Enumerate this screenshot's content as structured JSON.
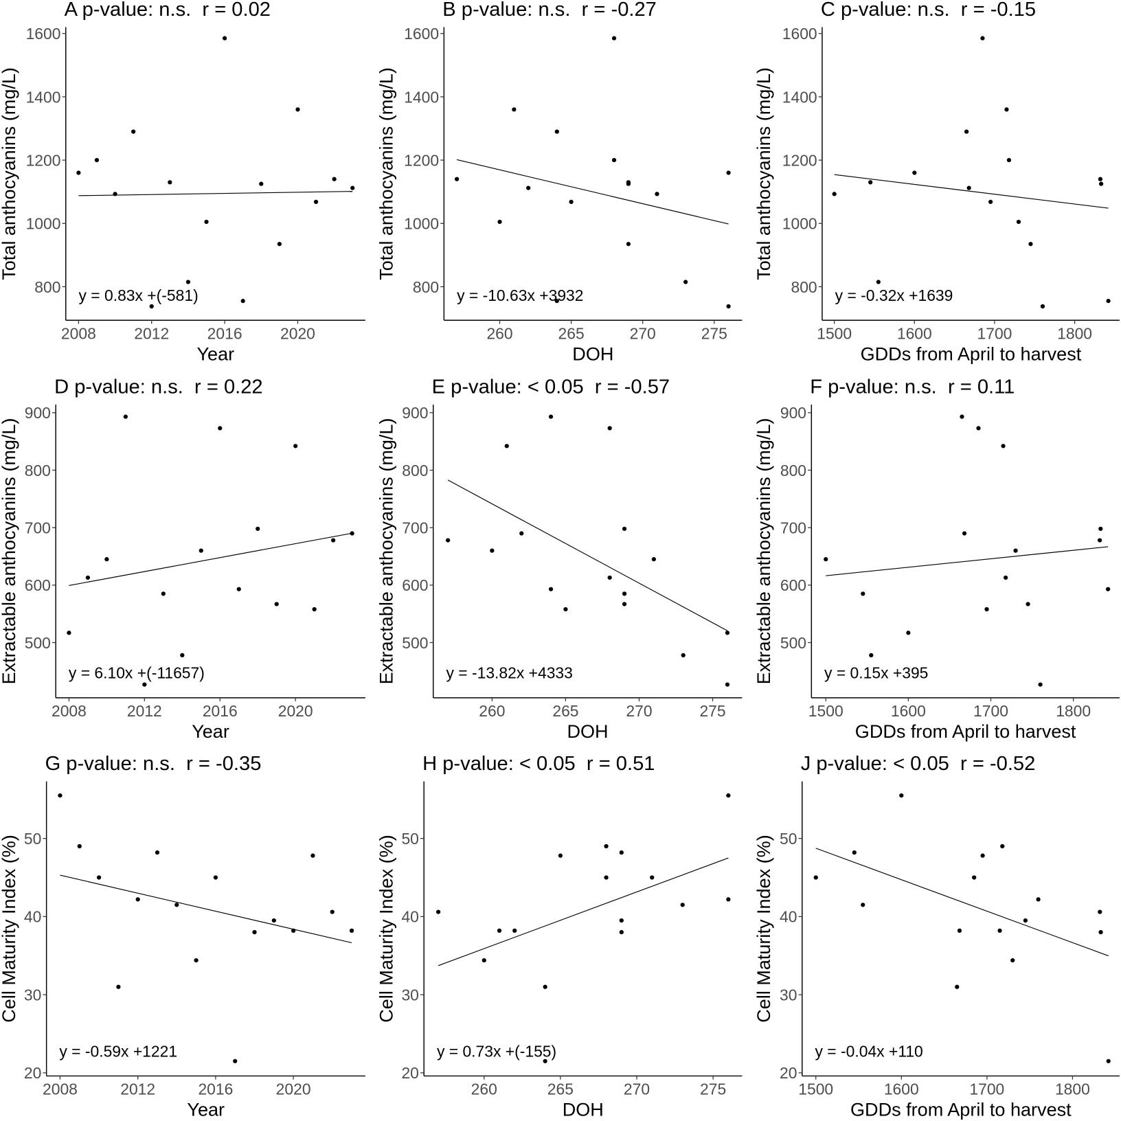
{
  "chart_data": [
    {
      "type": "scatter",
      "panel": "A",
      "title": "A p-value: n.s.  r = 0.02",
      "xlabel": "Year",
      "ylabel": "Total anthocyanins (mg/L)",
      "equation": "y = 0.83x +(-581)",
      "xlim": [
        2007.3,
        2023.7
      ],
      "ylim": [
        694,
        1620
      ],
      "xticks": [
        2008,
        2012,
        2016,
        2020
      ],
      "yticks": [
        800,
        1000,
        1200,
        1400,
        1600
      ],
      "fit_line": true,
      "grid": false,
      "x": [
        2008,
        2009,
        2010,
        2011,
        2012,
        2013,
        2014,
        2015,
        2016,
        2017,
        2018,
        2019,
        2020,
        2021,
        2022,
        2023
      ],
      "y": [
        1160,
        1200,
        1093,
        1290,
        738,
        1130,
        815,
        1005,
        1585,
        755,
        1125,
        935,
        1360,
        1068,
        1140,
        1112
      ]
    },
    {
      "type": "scatter",
      "panel": "B",
      "title": "B p-value: n.s.  r = -0.27",
      "xlabel": "DOH",
      "ylabel": "Total anthocyanins (mg/L)",
      "equation": "y = -10.63x +3932",
      "xlim": [
        256.1,
        276.95
      ],
      "ylim": [
        694,
        1620
      ],
      "xticks": [
        260,
        265,
        270,
        275
      ],
      "yticks": [
        800,
        1000,
        1200,
        1400,
        1600
      ],
      "fit_line": true,
      "grid": false,
      "x": [
        276,
        268,
        271,
        264,
        276,
        269,
        273,
        260,
        268,
        264,
        269,
        269,
        261,
        265,
        257,
        262
      ],
      "y": [
        1160,
        1200,
        1093,
        1290,
        738,
        1130,
        815,
        1005,
        1585,
        755,
        1125,
        935,
        1360,
        1068,
        1140,
        1112
      ]
    },
    {
      "type": "scatter",
      "panel": "C",
      "title": "C p-value: n.s.  r = -0.15",
      "xlabel": "GDDs from April to harvest",
      "ylabel": "Total anthocyanins (mg/L)",
      "equation": "y = -0.32x +1639",
      "xlim": [
        1484.8,
        1856
      ],
      "ylim": [
        694,
        1620
      ],
      "xticks": [
        1500,
        1600,
        1700,
        1800
      ],
      "yticks": [
        800,
        1000,
        1200,
        1400,
        1600
      ],
      "fit_line": true,
      "grid": false,
      "x": [
        1600,
        1718,
        1500,
        1665,
        1760,
        1545,
        1555,
        1730,
        1685,
        1842,
        1833,
        1745,
        1715,
        1695,
        1832,
        1668
      ],
      "y": [
        1160,
        1200,
        1093,
        1290,
        738,
        1130,
        815,
        1005,
        1585,
        755,
        1125,
        935,
        1360,
        1068,
        1140,
        1112
      ]
    },
    {
      "type": "scatter",
      "panel": "D",
      "title": "D p-value: n.s.  r = 0.22",
      "xlabel": "Year",
      "ylabel": "Extractable anthocyanins (mg/L)",
      "equation": "y = 6.10x +(-11657)",
      "xlim": [
        2007.3,
        2023.7
      ],
      "ylim": [
        404,
        914
      ],
      "xticks": [
        2008,
        2012,
        2016,
        2020
      ],
      "yticks": [
        500,
        600,
        700,
        800,
        900
      ],
      "fit_line": true,
      "grid": false,
      "x": [
        2008,
        2009,
        2010,
        2011,
        2012,
        2013,
        2014,
        2015,
        2016,
        2017,
        2018,
        2019,
        2020,
        2021,
        2022,
        2023
      ],
      "y": [
        517,
        613,
        645,
        893,
        427,
        585,
        478,
        660,
        873,
        593,
        698,
        567,
        842,
        558,
        678,
        690
      ]
    },
    {
      "type": "scatter",
      "panel": "E",
      "title": "E p-value: < 0.05  r = -0.57",
      "xlabel": "DOH",
      "ylabel": "Extractable anthocyanins (mg/L)",
      "equation": "y = -13.82x +4333",
      "xlim": [
        256,
        277
      ],
      "ylim": [
        404,
        914
      ],
      "xticks": [
        260,
        265,
        270,
        275
      ],
      "yticks": [
        500,
        600,
        700,
        800,
        900
      ],
      "fit_line": true,
      "grid": false,
      "x": [
        276,
        268,
        271,
        264,
        276,
        269,
        273,
        260,
        268,
        264,
        269,
        269,
        261,
        265,
        257,
        262
      ],
      "y": [
        517,
        613,
        645,
        893,
        427,
        585,
        478,
        660,
        873,
        593,
        698,
        567,
        842,
        558,
        678,
        690
      ]
    },
    {
      "type": "scatter",
      "panel": "F",
      "title": "F p-value: n.s.  r = 0.11",
      "xlabel": "GDDs from April to harvest",
      "ylabel": "Extractable anthocyanins (mg/L)",
      "equation": "y = 0.15x +395",
      "xlim": [
        1482.6,
        1856
      ],
      "ylim": [
        404,
        914
      ],
      "xticks": [
        1500,
        1600,
        1700,
        1800
      ],
      "yticks": [
        500,
        600,
        700,
        800,
        900
      ],
      "fit_line": true,
      "grid": false,
      "x": [
        1600,
        1718,
        1500,
        1665,
        1760,
        1545,
        1555,
        1730,
        1685,
        1842,
        1833,
        1745,
        1715,
        1695,
        1832,
        1668
      ],
      "y": [
        517,
        613,
        645,
        893,
        427,
        585,
        478,
        660,
        873,
        593,
        698,
        567,
        842,
        558,
        678,
        690
      ]
    },
    {
      "type": "scatter",
      "panel": "G",
      "title": "G p-value: n.s.  r = -0.35",
      "xlabel": "Year",
      "ylabel": "Cell Maturity Index (%)",
      "equation": "y = -0.59x +1221",
      "xlim": [
        2007.3,
        2023.7
      ],
      "ylim": [
        19.6,
        57.3
      ],
      "xticks": [
        2008,
        2012,
        2016,
        2020
      ],
      "yticks": [
        20,
        30,
        40,
        50
      ],
      "fit_line": true,
      "grid": false,
      "x": [
        2008,
        2009,
        2010,
        2011,
        2012,
        2013,
        2014,
        2015,
        2016,
        2017,
        2018,
        2019,
        2020,
        2021,
        2022,
        2023
      ],
      "y": [
        55.5,
        49,
        45,
        31,
        42.2,
        48.2,
        41.5,
        34.4,
        45,
        21.5,
        38,
        39.5,
        38.2,
        47.8,
        40.6,
        38.2
      ]
    },
    {
      "type": "scatter",
      "panel": "H",
      "title": "H p-value: < 0.05  r = 0.51",
      "xlabel": "DOH",
      "ylabel": "Cell Maturity Index (%)",
      "equation": "y = 0.73x +(-155)",
      "xlim": [
        256.06,
        276.9
      ],
      "ylim": [
        19.6,
        57.3
      ],
      "xticks": [
        260,
        265,
        270,
        275
      ],
      "yticks": [
        20,
        30,
        40,
        50
      ],
      "fit_line": true,
      "grid": false,
      "x": [
        276,
        268,
        271,
        264,
        276,
        269,
        273,
        260,
        268,
        264,
        269,
        269,
        261,
        265,
        257,
        262
      ],
      "y": [
        55.5,
        49,
        45,
        31,
        42.2,
        48.2,
        41.5,
        34.4,
        45,
        21.5,
        38,
        39.5,
        38.2,
        47.8,
        40.6,
        38.2
      ]
    },
    {
      "type": "scatter",
      "panel": "J",
      "title": "J p-value: < 0.05  r = -0.52",
      "xlabel": "GDDs from April to harvest",
      "ylabel": "Cell Maturity Index (%)",
      "equation": "y = -0.04x +110",
      "xlim": [
        1484,
        1855
      ],
      "ylim": [
        19.6,
        57.3
      ],
      "xticks": [
        1500,
        1600,
        1700,
        1800
      ],
      "yticks": [
        20,
        30,
        40,
        50
      ],
      "fit_line": true,
      "grid": false,
      "x": [
        1600,
        1718,
        1500,
        1665,
        1760,
        1545,
        1555,
        1730,
        1685,
        1842,
        1833,
        1745,
        1715,
        1695,
        1832,
        1668
      ],
      "y": [
        55.5,
        49,
        45,
        31,
        42.2,
        48.2,
        41.5,
        34.4,
        45,
        21.5,
        38,
        39.5,
        38.2,
        47.8,
        40.6,
        38.2
      ]
    }
  ]
}
